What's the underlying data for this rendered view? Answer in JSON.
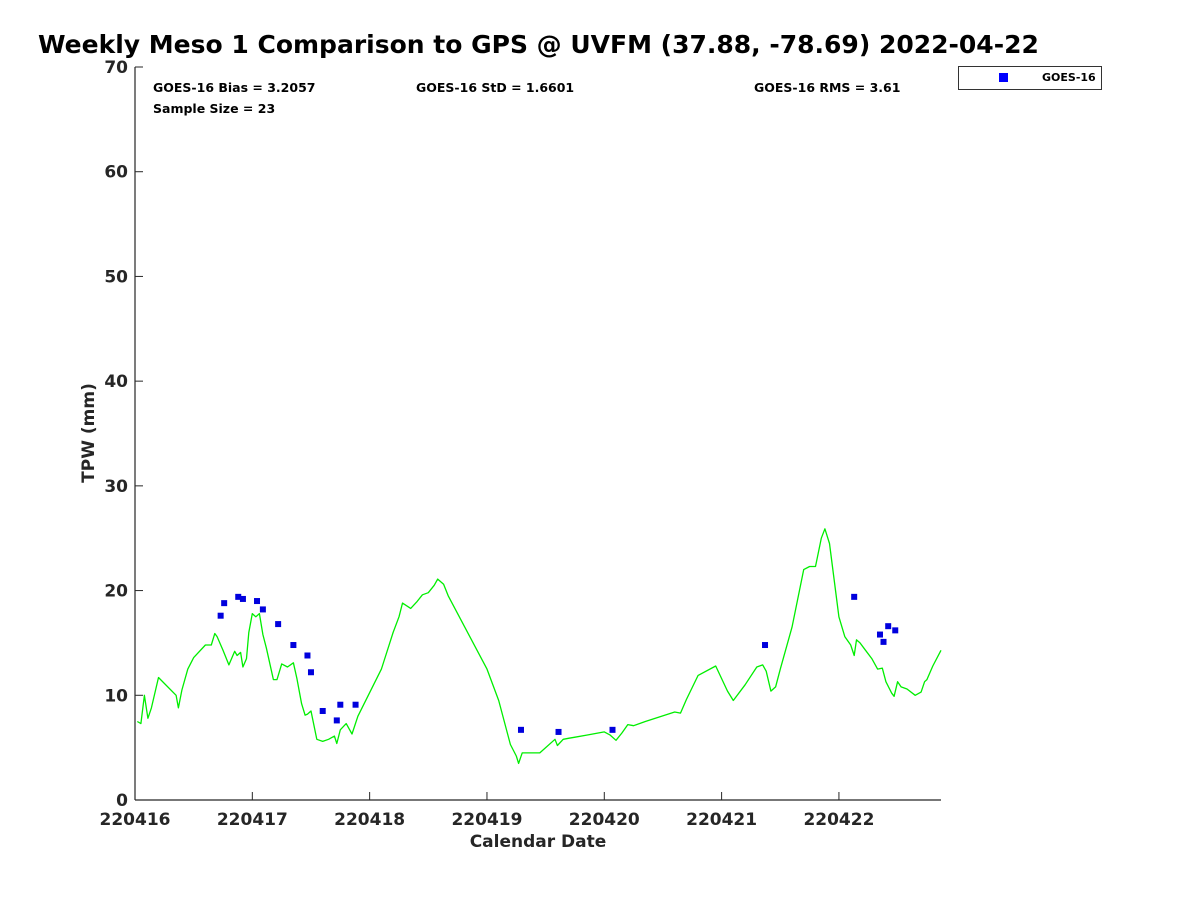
{
  "chart_data": {
    "type": "scatter+line",
    "title": "Weekly Meso 1 Comparison to GPS @ UVFM (37.88, -78.69) 2022-04-22",
    "xlabel": "Calendar Date",
    "ylabel": "TPW (mm)",
    "xlim": [
      220416,
      220422.87
    ],
    "ylim": [
      0,
      70
    ],
    "x_ticks": [
      220416,
      220417,
      220418,
      220419,
      220420,
      220421,
      220422
    ],
    "x_tick_labels": [
      "220416",
      "220417",
      "220418",
      "220419",
      "220420",
      "220421",
      "220422"
    ],
    "y_ticks": [
      0,
      10,
      20,
      30,
      40,
      50,
      60,
      70
    ],
    "y_tick_labels": [
      "0",
      "10",
      "20",
      "30",
      "40",
      "50",
      "60",
      "70"
    ],
    "grid": false,
    "legend": {
      "location": "top-right-outside",
      "entries": [
        "GOES-16"
      ]
    },
    "stats": {
      "bias": "GOES-16 Bias = 3.2057",
      "std": "GOES-16 StD = 1.6601",
      "rms": "GOES-16 RMS = 3.61",
      "sample": "Sample Size = 23"
    },
    "series": [
      {
        "name": "GOES-16",
        "style": "marker",
        "color": "#0000dd",
        "x": [
          220416.73,
          220416.76,
          220416.88,
          220416.92,
          220417.04,
          220417.09,
          220417.22,
          220417.35,
          220417.47,
          220417.5,
          220417.6,
          220417.72,
          220417.75,
          220417.88,
          220419.29,
          220419.61,
          220420.07,
          220421.37,
          220422.13,
          220422.35,
          220422.38,
          220422.42,
          220422.48
        ],
        "y": [
          17.6,
          18.8,
          19.4,
          19.2,
          19.0,
          18.2,
          16.8,
          14.8,
          13.8,
          12.2,
          8.5,
          7.6,
          9.1,
          9.1,
          6.7,
          6.5,
          6.7,
          14.8,
          19.4,
          15.8,
          15.1,
          16.6,
          16.2
        ]
      },
      {
        "style": "line",
        "color": "#00ee00",
        "x": [
          220416.02,
          220416.05,
          220416.08,
          220416.11,
          220416.14,
          220416.2,
          220416.35,
          220416.37,
          220416.4,
          220416.45,
          220416.5,
          220416.6,
          220416.65,
          220416.68,
          220416.7,
          220416.75,
          220416.8,
          220416.85,
          220416.87,
          220416.9,
          220416.92,
          220416.95,
          220416.97,
          220417.0,
          220417.03,
          220417.06,
          220417.09,
          220417.12,
          220417.18,
          220417.21,
          220417.25,
          220417.3,
          220417.35,
          220417.38,
          220417.42,
          220417.45,
          220417.47,
          220417.5,
          220417.55,
          220417.6,
          220417.65,
          220417.7,
          220417.72,
          220417.75,
          220417.8,
          220417.85,
          220417.9,
          220418.1,
          220418.2,
          220418.25,
          220418.28,
          220418.35,
          220418.4,
          220418.45,
          220418.5,
          220418.55,
          220418.58,
          220418.63,
          220418.67,
          220419.0,
          220419.1,
          220419.2,
          220419.25,
          220419.27,
          220419.3,
          220419.35,
          220419.45,
          220419.58,
          220419.6,
          220419.65,
          220419.7,
          220419.75,
          220419.85,
          220420.0,
          220420.05,
          220420.1,
          220420.15,
          220420.2,
          220420.25,
          220420.35,
          220420.6,
          220420.65,
          220420.7,
          220420.8,
          220420.95,
          220421.05,
          220421.1,
          220421.2,
          220421.3,
          220421.35,
          220421.38,
          220421.42,
          220421.46,
          220421.5,
          220421.6,
          220421.7,
          220421.75,
          220421.8,
          220421.85,
          220421.88,
          220421.92,
          220422.0,
          220422.05,
          220422.1,
          220422.13,
          220422.15,
          220422.18,
          220422.22,
          220422.28,
          220422.33,
          220422.37,
          220422.4,
          220422.45,
          220422.47,
          220422.5,
          220422.53,
          220422.58,
          220422.65,
          220422.7,
          220422.73,
          220422.75,
          220422.8,
          220422.87
        ],
        "y": [
          7.5,
          7.3,
          10.0,
          7.8,
          8.8,
          11.7,
          10.0,
          8.8,
          10.5,
          12.5,
          13.6,
          14.8,
          14.8,
          15.9,
          15.6,
          14.3,
          12.9,
          14.2,
          13.8,
          14.1,
          12.7,
          13.5,
          16.0,
          17.8,
          17.5,
          17.8,
          15.8,
          14.5,
          11.5,
          11.5,
          13.0,
          12.7,
          13.1,
          11.6,
          9.2,
          8.1,
          8.2,
          8.5,
          5.8,
          5.6,
          5.8,
          6.1,
          5.4,
          6.7,
          7.3,
          6.3,
          8.0,
          12.5,
          16.0,
          17.5,
          18.8,
          18.3,
          18.9,
          19.6,
          19.8,
          20.5,
          21.1,
          20.6,
          19.5,
          12.5,
          9.5,
          5.3,
          4.2,
          3.5,
          4.5,
          4.5,
          4.5,
          5.8,
          5.2,
          5.8,
          5.9,
          6.0,
          6.2,
          6.5,
          6.2,
          5.7,
          6.4,
          7.2,
          7.1,
          7.5,
          8.4,
          8.3,
          9.6,
          11.9,
          12.8,
          10.4,
          9.5,
          11.0,
          12.7,
          12.9,
          12.3,
          10.4,
          10.8,
          12.5,
          16.5,
          22.0,
          22.3,
          22.3,
          25.0,
          25.9,
          24.5,
          17.5,
          15.6,
          14.8,
          13.8,
          15.3,
          15.0,
          14.4,
          13.5,
          12.5,
          12.6,
          11.3,
          10.2,
          9.9,
          11.3,
          10.8,
          10.6,
          10.0,
          10.3,
          11.3,
          11.5,
          12.8,
          14.3
        ]
      }
    ]
  }
}
